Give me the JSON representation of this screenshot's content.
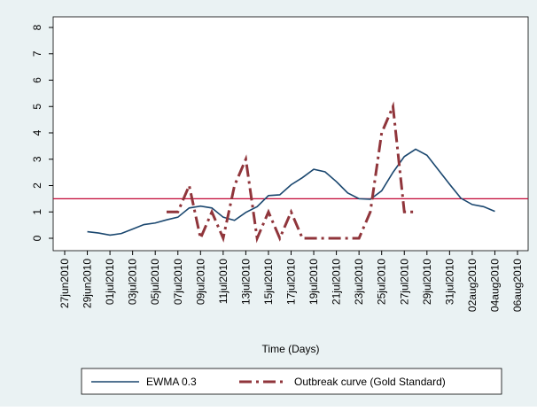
{
  "chart_data": {
    "type": "line",
    "x": [
      "2010-06-29",
      "2010-06-30",
      "2010-07-01",
      "2010-07-02",
      "2010-07-03",
      "2010-07-04",
      "2010-07-05",
      "2010-07-06",
      "2010-07-07",
      "2010-07-08",
      "2010-07-09",
      "2010-07-10",
      "2010-07-11",
      "2010-07-12",
      "2010-07-13",
      "2010-07-14",
      "2010-07-15",
      "2010-07-16",
      "2010-07-17",
      "2010-07-18",
      "2010-07-19",
      "2010-07-20",
      "2010-07-21",
      "2010-07-22",
      "2010-07-23",
      "2010-07-24",
      "2010-07-25",
      "2010-07-26",
      "2010-07-27",
      "2010-07-28",
      "2010-07-29",
      "2010-07-30",
      "2010-07-31",
      "2010-08-01",
      "2010-08-02",
      "2010-08-03",
      "2010-08-04"
    ],
    "series": [
      {
        "name": "EWMA 0.3",
        "color": "#1a476f",
        "dash": "solid",
        "values": [
          0.25,
          0.2,
          0.12,
          0.18,
          0.35,
          0.52,
          0.58,
          0.7,
          0.8,
          1.15,
          1.22,
          1.15,
          0.8,
          0.68,
          0.98,
          1.2,
          1.62,
          1.65,
          2.03,
          2.3,
          2.62,
          2.52,
          2.15,
          1.72,
          1.5,
          1.48,
          1.8,
          2.5,
          3.1,
          3.38,
          3.15,
          2.6,
          2.05,
          1.52,
          1.28,
          1.2,
          1.02
        ]
      },
      {
        "name": "Outbreak curve (Gold Standard)",
        "color": "#90353b",
        "dash": "dashdot",
        "values": [
          null,
          null,
          null,
          null,
          null,
          null,
          null,
          1,
          1,
          2,
          0,
          1,
          0,
          2,
          3,
          0,
          1,
          0,
          1,
          0,
          0,
          0,
          0,
          0,
          0,
          1,
          4,
          5,
          1,
          1,
          null,
          null,
          null,
          null,
          null,
          null,
          null
        ]
      }
    ],
    "hline": 1.5,
    "hline_color": "#c10534",
    "xlabel": "Time (Days)",
    "xlim": [
      "2010-06-27",
      "2010-08-06"
    ],
    "xticks": [
      {
        "value": "2010-06-27",
        "label": "27jun2010"
      },
      {
        "value": "2010-06-29",
        "label": "29jun2010"
      },
      {
        "value": "2010-07-01",
        "label": "01jul2010"
      },
      {
        "value": "2010-07-03",
        "label": "03jul2010"
      },
      {
        "value": "2010-07-05",
        "label": "05jul2010"
      },
      {
        "value": "2010-07-07",
        "label": "07jul2010"
      },
      {
        "value": "2010-07-09",
        "label": "09jul2010"
      },
      {
        "value": "2010-07-11",
        "label": "11jul2010"
      },
      {
        "value": "2010-07-13",
        "label": "13jul2010"
      },
      {
        "value": "2010-07-15",
        "label": "15jul2010"
      },
      {
        "value": "2010-07-17",
        "label": "17jul2010"
      },
      {
        "value": "2010-07-19",
        "label": "19jul2010"
      },
      {
        "value": "2010-07-21",
        "label": "21jul2010"
      },
      {
        "value": "2010-07-23",
        "label": "23jul2010"
      },
      {
        "value": "2010-07-25",
        "label": "25jul2010"
      },
      {
        "value": "2010-07-27",
        "label": "27jul2010"
      },
      {
        "value": "2010-07-29",
        "label": "29jul2010"
      },
      {
        "value": "2010-07-31",
        "label": "31jul2010"
      },
      {
        "value": "2010-08-02",
        "label": "02aug2010"
      },
      {
        "value": "2010-08-04",
        "label": "04aug2010"
      },
      {
        "value": "2010-08-06",
        "label": "06aug2010"
      }
    ],
    "ylim": [
      0,
      8
    ],
    "yticks": [
      0,
      1,
      2,
      3,
      4,
      5,
      6,
      7,
      8
    ]
  }
}
